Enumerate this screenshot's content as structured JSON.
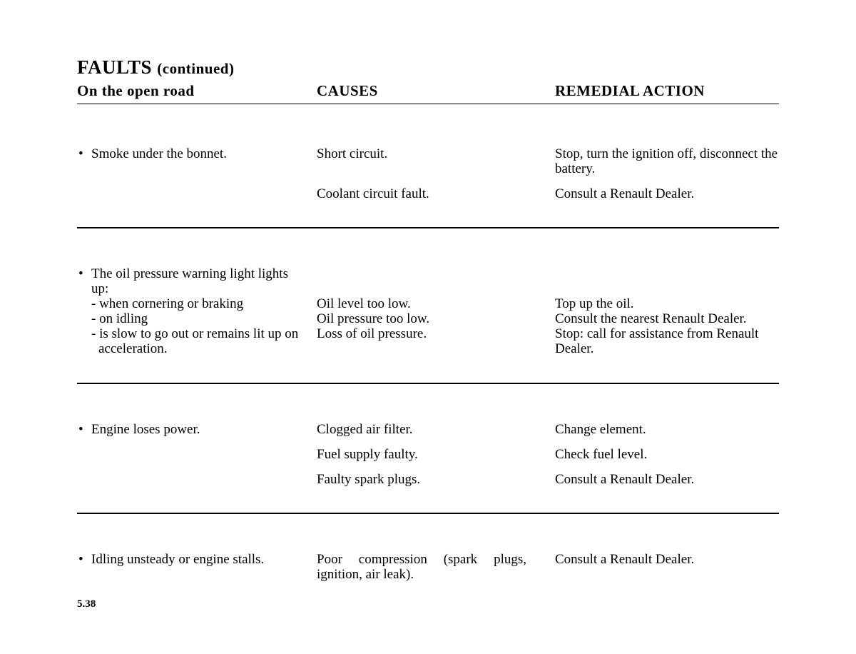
{
  "title_main": "FAULTS",
  "title_cont": "(continued)",
  "headers": {
    "col1": "On the open road",
    "col2": "CAUSES",
    "col3": "REMEDIAL ACTION"
  },
  "section1": {
    "fault": "Smoke under the bonnet.",
    "cause_a": "Short circuit.",
    "remedy_a": "Stop, turn the ignition off, disconnect the battery.",
    "cause_b": "Coolant circuit fault.",
    "remedy_b": "Consult a Renault Dealer."
  },
  "section2": {
    "fault_intro": "The oil pressure warning light lights up:",
    "fault_line1": "- when cornering or braking",
    "fault_line2": "- on idling",
    "fault_line3": "- is slow to go out or remains lit up on acceleration.",
    "cause_a": "Oil level too low.",
    "cause_b": "Oil pressure too low.",
    "cause_c": "Loss of oil pressure.",
    "remedy_a": "Top up the oil.",
    "remedy_b": "Consult the nearest Renault Dealer.",
    "remedy_c": "Stop: call for assistance from Renault Dealer."
  },
  "section3": {
    "fault": "Engine loses power.",
    "cause_a": "Clogged air filter.",
    "remedy_a": "Change element.",
    "cause_b": "Fuel supply faulty.",
    "remedy_b": "Check fuel level.",
    "cause_c": "Faulty spark plugs.",
    "remedy_c": "Consult a Renault Dealer."
  },
  "section4": {
    "fault": "Idling unsteady or engine stalls.",
    "cause_a": "Poor compression (spark plugs, ignition, air leak).",
    "remedy_a": "Consult a Renault Dealer."
  },
  "page_number": "5.38"
}
